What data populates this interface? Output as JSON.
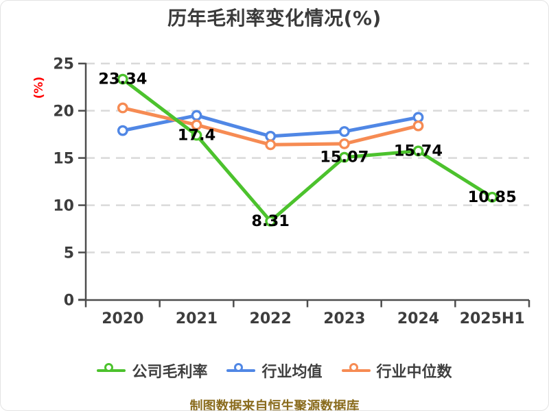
{
  "title": "历年毛利率变化情况(%)",
  "footer": "制图数据来自恒生聚源数据库",
  "colors": {
    "company_green": "#4cc22d",
    "industry_avg_blue": "#5087e5",
    "industry_median_orange": "#f68b53",
    "axis": "#4d4d4d",
    "tick_label": "#3d3d3d",
    "grid": "#d9d9d9",
    "data_label": "#000000",
    "y_axis_name_red": "#ff0000",
    "title_text": "#3a3a3a",
    "legend_text": "#3f3f3f",
    "footer_text": "#8a6c1e"
  },
  "chart_data": {
    "type": "line",
    "title": "历年毛利率变化情况(%)",
    "categories": [
      "2020",
      "2021",
      "2022",
      "2023",
      "2024",
      "2025H1"
    ],
    "ylabel": "(%)",
    "ylim": [
      0,
      25
    ],
    "ytick_step": 5,
    "yticks": [
      0,
      5,
      10,
      15,
      20,
      25
    ],
    "grid": "horizontal-dashed",
    "legend_position": "bottom",
    "series": [
      {
        "name": "公司毛利率",
        "color": "#4cc22d",
        "values": [
          23.34,
          17.4,
          8.31,
          15.07,
          15.74,
          10.85
        ],
        "labels": [
          "23.34",
          "17.4",
          "8.31",
          "15.07",
          "15.74",
          "10.85"
        ],
        "show_labels": true
      },
      {
        "name": "行业均值",
        "color": "#5087e5",
        "values": [
          17.9,
          19.5,
          17.3,
          17.8,
          19.3,
          null
        ],
        "show_labels": false
      },
      {
        "name": "行业中位数",
        "color": "#f68b53",
        "values": [
          20.3,
          18.5,
          16.4,
          16.5,
          18.4,
          null
        ],
        "show_labels": false
      }
    ]
  }
}
